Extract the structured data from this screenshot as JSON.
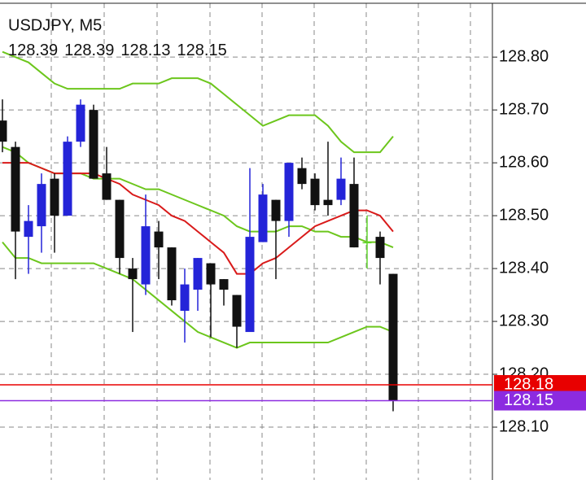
{
  "chart_data": {
    "type": "candlestick",
    "title": "USDJPY, M5",
    "last_ohlc": [
      128.39,
      128.39,
      128.13,
      128.15
    ],
    "categories": [
      null,
      null,
      null,
      null,
      null,
      null,
      null,
      null,
      null,
      null,
      null,
      null,
      null,
      null,
      null,
      null,
      null,
      null,
      null,
      null,
      null,
      null,
      null,
      null,
      null,
      null,
      null,
      null,
      null,
      null,
      null
    ],
    "open": [
      128.68,
      128.63,
      128.46,
      128.48,
      128.57,
      128.5,
      128.64,
      128.7,
      128.58,
      128.53,
      128.4,
      128.37,
      128.47,
      128.44,
      128.32,
      128.36,
      128.41,
      128.38,
      128.35,
      128.28,
      128.45,
      128.53,
      128.49,
      128.59,
      128.57,
      128.53,
      128.53,
      128.56,
      128.45,
      128.46,
      128.39
    ],
    "high": [
      128.72,
      128.64,
      128.52,
      128.58,
      128.58,
      128.65,
      128.72,
      128.71,
      128.63,
      128.53,
      128.42,
      128.54,
      128.49,
      128.44,
      128.4,
      128.42,
      128.41,
      128.38,
      128.35,
      128.59,
      128.56,
      128.53,
      128.6,
      128.61,
      128.58,
      128.64,
      128.61,
      128.61,
      128.5,
      128.47,
      128.39
    ],
    "low": [
      128.62,
      128.38,
      128.39,
      128.43,
      128.43,
      128.5,
      128.63,
      128.57,
      128.53,
      128.39,
      128.28,
      128.35,
      128.38,
      128.33,
      128.26,
      128.32,
      128.27,
      128.33,
      128.25,
      128.28,
      128.45,
      128.38,
      128.46,
      128.55,
      128.51,
      128.5,
      128.52,
      128.44,
      128.4,
      128.37,
      128.13
    ],
    "close": [
      128.64,
      128.47,
      128.49,
      128.56,
      128.5,
      128.64,
      128.71,
      128.57,
      128.53,
      128.42,
      128.38,
      128.48,
      128.44,
      128.34,
      128.37,
      128.42,
      128.37,
      128.36,
      128.29,
      128.46,
      128.54,
      128.49,
      128.6,
      128.56,
      128.52,
      128.52,
      128.57,
      128.44,
      128.45,
      128.42,
      128.15
    ],
    "up_color": "#2424d8",
    "down_color": "#111111",
    "doji_color": "#5fd42a",
    "lines": [
      {
        "color": "#6cc61c",
        "values": [
          128.81,
          128.8,
          128.79,
          128.77,
          128.75,
          128.74,
          128.74,
          128.74,
          128.74,
          128.74,
          128.75,
          128.75,
          128.75,
          128.76,
          128.76,
          128.76,
          128.75,
          128.73,
          128.71,
          128.69,
          128.67,
          128.68,
          128.69,
          128.69,
          128.69,
          128.67,
          128.64,
          128.62,
          128.62,
          128.62,
          128.65
        ]
      },
      {
        "color": "#6cc61c",
        "values": [
          128.63,
          128.62,
          128.6,
          128.59,
          128.58,
          128.58,
          128.58,
          128.57,
          128.57,
          128.57,
          128.56,
          128.55,
          128.55,
          128.54,
          128.53,
          128.52,
          128.51,
          128.5,
          128.48,
          128.47,
          128.47,
          128.47,
          128.48,
          128.48,
          128.47,
          128.47,
          128.46,
          128.46,
          128.45,
          128.45,
          128.44
        ]
      },
      {
        "color": "#6cc61c",
        "values": [
          128.45,
          128.42,
          128.42,
          128.41,
          128.41,
          128.41,
          128.41,
          128.41,
          128.4,
          128.39,
          128.38,
          128.36,
          128.34,
          128.32,
          128.3,
          128.28,
          128.27,
          128.26,
          128.25,
          128.26,
          128.26,
          128.26,
          128.26,
          128.26,
          128.26,
          128.26,
          128.27,
          128.28,
          128.29,
          128.29,
          128.28
        ]
      },
      {
        "color": "#d91a1a",
        "values": [
          128.6,
          128.6,
          128.6,
          128.59,
          128.58,
          128.58,
          128.58,
          128.58,
          128.57,
          128.56,
          128.54,
          128.53,
          128.52,
          128.5,
          128.49,
          128.47,
          128.45,
          128.43,
          128.39,
          128.39,
          128.41,
          128.42,
          128.44,
          128.46,
          128.48,
          128.49,
          128.5,
          128.51,
          128.51,
          128.5,
          128.47
        ]
      }
    ],
    "price_lines": [
      {
        "value": 128.18,
        "color": "#e80000"
      },
      {
        "value": 128.15,
        "color": "#8c2be0"
      }
    ],
    "ylim": [
      128.0,
      128.908
    ],
    "yticks": [
      {
        "value": 128.1,
        "label": "128.10"
      },
      {
        "value": 128.2,
        "label": "128.20"
      },
      {
        "value": 128.3,
        "label": "128.30"
      },
      {
        "value": 128.4,
        "label": "128.40"
      },
      {
        "value": 128.5,
        "label": "128.50"
      },
      {
        "value": 128.6,
        "label": "128.60"
      },
      {
        "value": 128.7,
        "label": "128.70"
      },
      {
        "value": 128.8,
        "label": "128.80"
      }
    ],
    "grid": true
  }
}
